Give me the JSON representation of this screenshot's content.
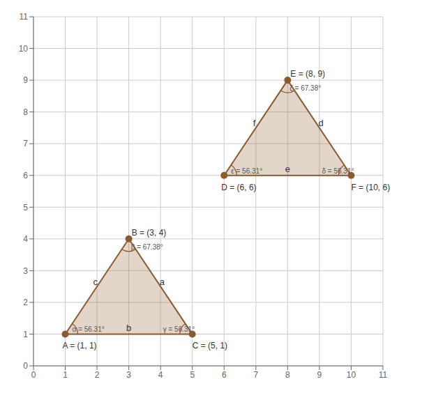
{
  "chart_data": {
    "type": "scatter",
    "xlim": [
      0,
      11
    ],
    "ylim": [
      0,
      11
    ],
    "xticks": [
      0,
      1,
      2,
      3,
      4,
      5,
      6,
      7,
      8,
      9,
      10,
      11
    ],
    "yticks": [
      0,
      1,
      2,
      3,
      4,
      5,
      6,
      7,
      8,
      9,
      10,
      11
    ],
    "grid": true,
    "series": [
      {
        "color": "#8b5a2b",
        "marker": "circle",
        "x": [
          1,
          3,
          5
        ],
        "y": [
          1,
          4,
          1
        ],
        "labels": [
          "A = (1, 1)",
          "B = (3, 4)",
          "C = (5, 1)"
        ],
        "angle_labels": [
          "α = 56.31°",
          "β = 67.38°",
          "γ = 56.31°"
        ]
      },
      {
        "color": "#8b5a2b",
        "marker": "circle",
        "x": [
          6,
          8,
          10
        ],
        "y": [
          6,
          9,
          6
        ],
        "labels": [
          "D = (6, 6)",
          "E = (8, 9)",
          "F = (10, 6)"
        ],
        "angle_labels": [
          "ε = 56.31°",
          "ζ = 67.38°",
          "δ = 56.31°"
        ]
      }
    ],
    "annotations": [
      {
        "text": "a",
        "x": 4.05,
        "y": 2.65
      },
      {
        "text": "b",
        "x": 3.0,
        "y": 1.2
      },
      {
        "text": "c",
        "x": 1.95,
        "y": 2.65
      },
      {
        "text": "d",
        "x": 9.05,
        "y": 7.65
      },
      {
        "text": "e",
        "x": 8.0,
        "y": 6.2
      },
      {
        "text": "f",
        "x": 6.95,
        "y": 7.65
      }
    ]
  }
}
